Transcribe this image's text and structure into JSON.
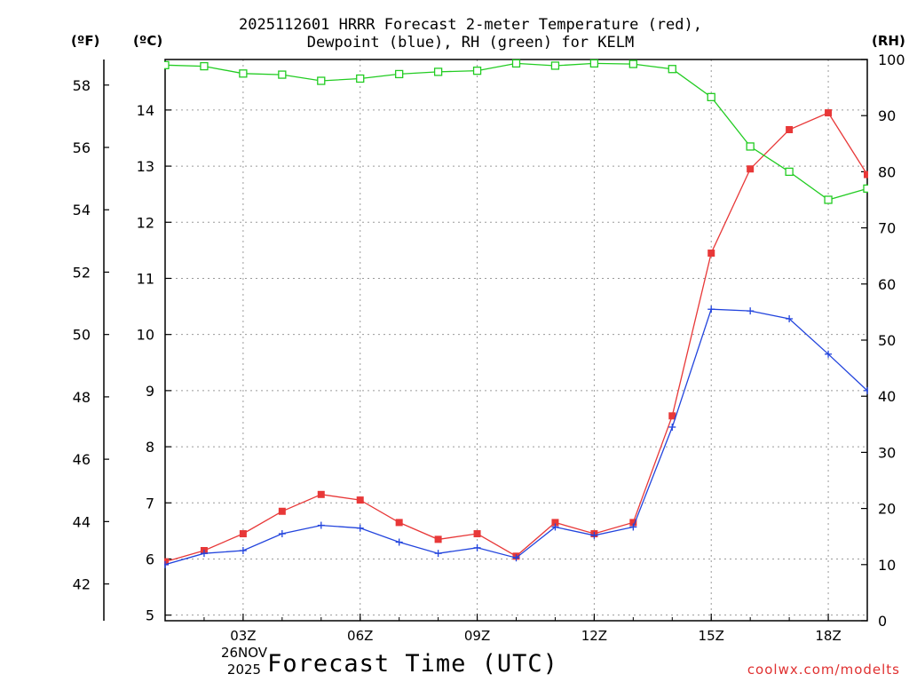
{
  "title_line1": "2025112601 HRRR Forecast 2-meter Temperature (red),",
  "title_line2": "Dewpoint (blue), RH (green) for KELM",
  "units": {
    "fahrenheit": "(ºF)",
    "celsius": "(ºC)",
    "rh": "(RH)"
  },
  "xaxis": {
    "title": "Forecast Time (UTC)",
    "date_line1": "26NOV",
    "date_line2": "2025"
  },
  "credit": "coolwx.com/modelts",
  "colors": {
    "temperature": "#e83838",
    "dewpoint": "#2244dd",
    "rh": "#22cc22",
    "grid": "#9a9a9a"
  },
  "chart_data": {
    "type": "line",
    "title": "2025112601 HRRR Forecast 2-meter Temperature (red), Dewpoint (blue), RH (green) for KELM",
    "xlabel": "Forecast Time (UTC)",
    "x_hours": [
      1,
      2,
      3,
      4,
      5,
      6,
      7,
      8,
      9,
      10,
      11,
      12,
      13,
      14,
      15,
      16,
      17,
      18,
      19
    ],
    "x_ticks": [
      {
        "hour": 3,
        "label": "03Z"
      },
      {
        "hour": 6,
        "label": "06Z"
      },
      {
        "hour": 9,
        "label": "09Z"
      },
      {
        "hour": 12,
        "label": "12Z"
      },
      {
        "hour": 15,
        "label": "15Z"
      },
      {
        "hour": 18,
        "label": "18Z"
      }
    ],
    "xlim": [
      1,
      19
    ],
    "celsius_axis": {
      "range": [
        4.9,
        14.9
      ],
      "ticks": [
        5,
        6,
        7,
        8,
        9,
        10,
        11,
        12,
        13,
        14
      ]
    },
    "fahrenheit_axis": {
      "range": [
        40.82,
        58.82
      ],
      "ticks": [
        42,
        44,
        46,
        48,
        50,
        52,
        54,
        56,
        58
      ]
    },
    "rh_axis": {
      "range": [
        0,
        100
      ],
      "ticks": [
        0,
        10,
        20,
        30,
        40,
        50,
        60,
        70,
        80,
        90,
        100
      ]
    },
    "series": [
      {
        "name": "Temperature (°C)",
        "axis": "celsius",
        "marker": "filled-square",
        "values": [
          5.95,
          6.15,
          6.45,
          6.85,
          7.15,
          7.05,
          6.65,
          6.35,
          6.45,
          6.05,
          6.65,
          6.45,
          6.65,
          8.55,
          11.45,
          12.95,
          13.65,
          13.95,
          12.85
        ]
      },
      {
        "name": "Dewpoint (°C)",
        "axis": "celsius",
        "marker": "plus",
        "values": [
          5.9,
          6.1,
          6.15,
          6.45,
          6.6,
          6.55,
          6.3,
          6.1,
          6.2,
          6.02,
          6.57,
          6.42,
          6.57,
          8.35,
          10.45,
          10.42,
          10.28,
          9.65,
          9.0
        ]
      },
      {
        "name": "RH (%)",
        "axis": "rh",
        "marker": "open-square",
        "values": [
          99,
          98.8,
          97.5,
          97.3,
          96.2,
          96.6,
          97.4,
          97.8,
          98,
          99.3,
          98.9,
          99.3,
          99.2,
          98.3,
          93.3,
          84.5,
          80,
          75,
          77
        ]
      }
    ]
  }
}
